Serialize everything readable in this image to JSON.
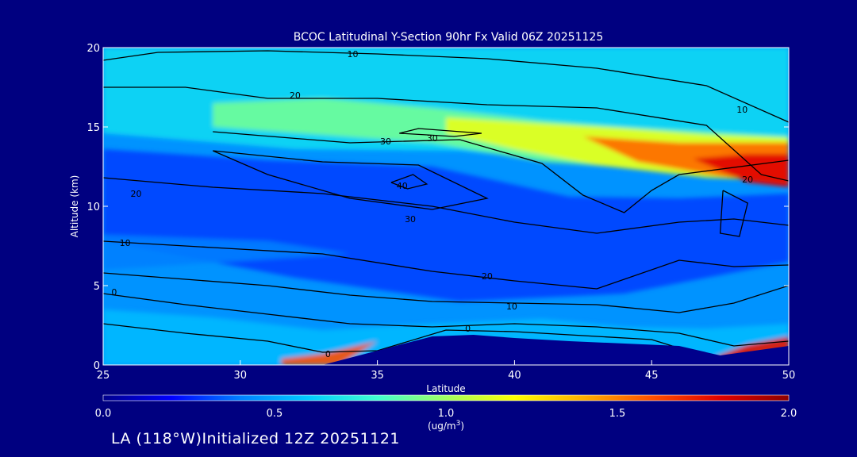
{
  "chart_data": {
    "type": "heatmap",
    "title": "BCOC Latitudinal Y-Section 90hr  Fx Valid 06Z 20251125",
    "xlabel": "Latitude",
    "ylabel": "Altitude (km)",
    "xlim": [
      25,
      50
    ],
    "ylim": [
      0,
      20
    ],
    "x_ticks": [
      {
        "value": 25,
        "label": "25"
      },
      {
        "value": 30,
        "label": "30"
      },
      {
        "value": 35,
        "label": "35"
      },
      {
        "value": 40,
        "label": "40"
      },
      {
        "value": 45,
        "label": "45"
      },
      {
        "value": 50,
        "label": "50"
      }
    ],
    "y_ticks": [
      {
        "value": 0,
        "label": "0"
      },
      {
        "value": 5,
        "label": "5"
      },
      {
        "value": 10,
        "label": "10"
      },
      {
        "value": 15,
        "label": "15"
      },
      {
        "value": 20,
        "label": "20"
      }
    ],
    "colorbar": {
      "min": 0.0,
      "max": 2.0,
      "label": "(ug/m",
      "label_sup": "3",
      "label_end": ")",
      "ticks": [
        {
          "value": 0.0,
          "label": "0.0"
        },
        {
          "value": 0.5,
          "label": "0.5"
        },
        {
          "value": 1.0,
          "label": "1.0"
        },
        {
          "value": 1.5,
          "label": "1.5"
        },
        {
          "value": 2.0,
          "label": "2.0"
        }
      ],
      "colors": [
        "#00008c",
        "#0000ff",
        "#0080ff",
        "#00ccff",
        "#40ffd0",
        "#a0ff60",
        "#ffff00",
        "#ffb000",
        "#ff5000",
        "#e00000",
        "#8c0000"
      ]
    },
    "concentration_bands": [
      {
        "name": "upper-cyan",
        "value": 0.65
      },
      {
        "name": "stratosphere-green",
        "value": 0.9
      },
      {
        "name": "jet-yellow",
        "value": 1.15
      },
      {
        "name": "jet-orange",
        "value": 1.55
      },
      {
        "name": "jet-core-red",
        "value": 1.8
      },
      {
        "name": "mid-blue",
        "value": 0.3
      },
      {
        "name": "low-blue",
        "value": 0.4
      },
      {
        "name": "boundary-light",
        "value": 0.55
      },
      {
        "name": "surface-plume-la",
        "value": 1.6
      },
      {
        "name": "surface-plume-north",
        "value": 1.75
      }
    ],
    "contours": [
      {
        "level": 10,
        "points": [
          [
            25,
            19.2
          ],
          [
            27,
            19.7
          ],
          [
            31,
            19.8
          ],
          [
            35,
            19.6
          ],
          [
            39,
            19.3
          ],
          [
            43,
            18.7
          ],
          [
            47,
            17.6
          ],
          [
            50,
            15.3
          ]
        ]
      },
      {
        "level": 20,
        "points": [
          [
            25,
            17.5
          ],
          [
            28,
            17.5
          ],
          [
            31,
            16.8
          ],
          [
            35,
            16.8
          ],
          [
            39,
            16.4
          ],
          [
            43,
            16.2
          ],
          [
            47,
            15.1
          ],
          [
            49,
            12.0
          ],
          [
            50,
            11.6
          ]
        ]
      },
      {
        "level": 30,
        "points": [
          [
            29,
            14.7
          ],
          [
            34,
            14.0
          ],
          [
            38,
            14.2
          ],
          [
            41,
            12.7
          ],
          [
            42.5,
            10.7
          ],
          [
            44,
            9.6
          ],
          [
            45,
            11.0
          ],
          [
            46,
            12.0
          ],
          [
            50,
            12.9
          ]
        ]
      },
      {
        "level": 30,
        "points": [
          [
            35.8,
            14.6
          ],
          [
            37.8,
            14.4
          ],
          [
            38.8,
            14.6
          ],
          [
            36.5,
            14.9
          ],
          [
            35.8,
            14.6
          ]
        ]
      },
      {
        "level": 40,
        "points": [
          [
            35.5,
            11.5
          ],
          [
            36.3,
            12.0
          ],
          [
            36.8,
            11.4
          ],
          [
            36.1,
            11.1
          ],
          [
            35.5,
            11.5
          ]
        ]
      },
      {
        "level": 30,
        "points": [
          [
            29,
            13.5
          ],
          [
            33,
            12.8
          ],
          [
            36.5,
            12.6
          ],
          [
            39,
            10.5
          ],
          [
            37,
            9.8
          ],
          [
            34,
            10.5
          ],
          [
            31,
            12.0
          ],
          [
            29,
            13.5
          ]
        ]
      },
      {
        "level": 20,
        "points": [
          [
            25,
            11.8
          ],
          [
            29,
            11.2
          ],
          [
            33,
            10.8
          ],
          [
            37,
            10.0
          ],
          [
            40,
            9.0
          ],
          [
            43,
            8.3
          ],
          [
            46,
            9.0
          ],
          [
            48,
            9.2
          ],
          [
            50,
            8.8
          ]
        ]
      },
      {
        "level": 20,
        "points": [
          [
            47.6,
            11.0
          ],
          [
            48.5,
            10.2
          ],
          [
            48.2,
            8.1
          ],
          [
            47.5,
            8.3
          ],
          [
            47.6,
            11.0
          ]
        ]
      },
      {
        "level": 10,
        "points": [
          [
            25,
            7.8
          ],
          [
            29,
            7.4
          ],
          [
            33,
            7.0
          ],
          [
            37,
            5.9
          ],
          [
            40,
            5.3
          ],
          [
            43,
            4.8
          ],
          [
            46,
            6.6
          ],
          [
            48,
            6.2
          ],
          [
            50,
            6.3
          ]
        ]
      },
      {
        "level": 10,
        "points": [
          [
            25,
            5.8
          ],
          [
            28,
            5.4
          ],
          [
            31,
            5.0
          ],
          [
            34,
            4.4
          ],
          [
            37,
            4.0
          ],
          [
            40,
            3.9
          ],
          [
            43,
            3.8
          ],
          [
            46,
            3.3
          ],
          [
            48,
            3.9
          ],
          [
            50,
            5.0
          ]
        ]
      },
      {
        "level": 0,
        "points": [
          [
            25,
            4.5
          ],
          [
            28,
            3.8
          ],
          [
            31,
            3.2
          ],
          [
            34,
            2.6
          ],
          [
            37,
            2.4
          ],
          [
            40,
            2.6
          ],
          [
            43,
            2.4
          ],
          [
            46,
            2.0
          ],
          [
            48,
            1.2
          ],
          [
            50,
            1.5
          ]
        ]
      },
      {
        "level": 0,
        "points": [
          [
            25,
            2.6
          ],
          [
            28,
            2.0
          ],
          [
            31,
            1.5
          ],
          [
            33,
            0.8
          ],
          [
            35,
            0.9
          ],
          [
            37.5,
            2.2
          ],
          [
            40,
            2.1
          ],
          [
            43,
            1.8
          ],
          [
            45,
            1.6
          ],
          [
            46.5,
            0.8
          ]
        ]
      }
    ],
    "contour_labels": [
      {
        "text": "10",
        "x": 34.1,
        "y": 19.6
      },
      {
        "text": "20",
        "x": 32.0,
        "y": 17.0
      },
      {
        "text": "30",
        "x": 35.3,
        "y": 14.1
      },
      {
        "text": "30",
        "x": 37.0,
        "y": 14.3
      },
      {
        "text": "40",
        "x": 35.9,
        "y": 11.3
      },
      {
        "text": "30",
        "x": 36.2,
        "y": 9.2
      },
      {
        "text": "20",
        "x": 26.2,
        "y": 10.8
      },
      {
        "text": "10",
        "x": 25.8,
        "y": 7.7
      },
      {
        "text": "0",
        "x": 25.4,
        "y": 4.6
      },
      {
        "text": "20",
        "x": 39.0,
        "y": 5.6
      },
      {
        "text": "10",
        "x": 39.9,
        "y": 3.7
      },
      {
        "text": "0",
        "x": 38.3,
        "y": 2.3
      },
      {
        "text": "0",
        "x": 33.2,
        "y": 0.7
      },
      {
        "text": "10",
        "x": 48.3,
        "y": 16.1
      },
      {
        "text": "20",
        "x": 48.5,
        "y": 11.7
      }
    ],
    "terrain": [
      [
        25,
        0
      ],
      [
        33,
        0
      ],
      [
        35,
        0.9
      ],
      [
        37,
        1.8
      ],
      [
        38.5,
        1.9
      ],
      [
        40,
        1.7
      ],
      [
        42,
        1.5
      ],
      [
        46,
        1.2
      ],
      [
        47.5,
        0.6
      ],
      [
        50,
        1.2
      ],
      [
        50,
        0
      ],
      [
        25,
        0
      ]
    ]
  },
  "footer": {
    "location": "LA (118°W)",
    "initialized": "Initialized 12Z 20251121"
  }
}
